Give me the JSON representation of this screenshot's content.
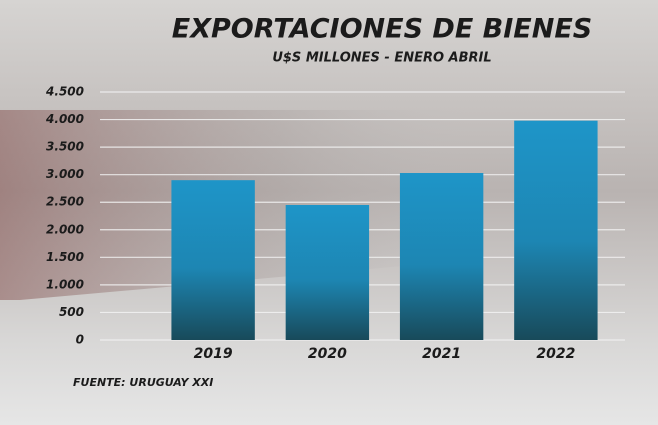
{
  "chart_data": {
    "type": "bar",
    "title": "EXPORTACIONES DE BIENES",
    "subtitle": "U$S MILLONES - ENERO ABRIL",
    "source": "FUENTE: URUGUAY XXI",
    "categories": [
      "2019",
      "2020",
      "2021",
      "2022"
    ],
    "values": [
      2900,
      2450,
      3030,
      3980
    ],
    "color": "#1e95c8",
    "ylim": [
      0,
      4500
    ],
    "yticks": [
      0,
      500,
      {
        "value": 1000,
        "label": "1.000"
      },
      {
        "value": 1500,
        "label": "1.500"
      },
      {
        "value": 2000,
        "label": "2.000"
      },
      {
        "value": 2500,
        "label": "2.500"
      },
      {
        "value": 3000,
        "label": "3.000"
      },
      {
        "value": 3500,
        "label": "3.500"
      },
      {
        "value": 4000,
        "label": "4.000"
      },
      {
        "value": 4500,
        "label": "4.500"
      }
    ],
    "grid": true
  }
}
